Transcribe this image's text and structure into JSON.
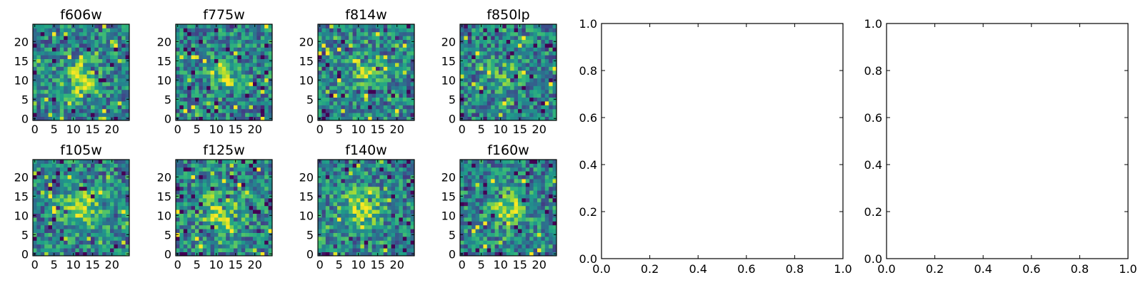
{
  "chart_data": [
    {
      "type": "heatmap",
      "title": "f606w",
      "x_ticks": [
        "0",
        "5",
        "10",
        "15",
        "20"
      ],
      "y_ticks": [
        "0",
        "5",
        "10",
        "15",
        "20"
      ],
      "xlim": [
        -0.5,
        24.5
      ],
      "ylim": [
        -0.5,
        24.5
      ],
      "grid_size": [
        25,
        25
      ],
      "colormap": "viridis",
      "seed": 11,
      "blob": {
        "x": 12,
        "y": 10,
        "amplitude": 0.45,
        "spread": 3.2
      }
    },
    {
      "type": "heatmap",
      "title": "f775w",
      "x_ticks": [
        "0",
        "5",
        "10",
        "15",
        "20"
      ],
      "y_ticks": [
        "0",
        "5",
        "10",
        "15",
        "20"
      ],
      "xlim": [
        -0.5,
        24.5
      ],
      "ylim": [
        -0.5,
        24.5
      ],
      "grid_size": [
        25,
        25
      ],
      "colormap": "viridis",
      "seed": 23,
      "blob": {
        "x": 12,
        "y": 12,
        "amplitude": 0.3,
        "spread": 2.8
      }
    },
    {
      "type": "heatmap",
      "title": "f814w",
      "x_ticks": [
        "0",
        "5",
        "10",
        "15",
        "20"
      ],
      "y_ticks": [
        "0",
        "5",
        "10",
        "15",
        "20"
      ],
      "xlim": [
        -0.5,
        24.5
      ],
      "ylim": [
        -0.5,
        24.5
      ],
      "grid_size": [
        25,
        25
      ],
      "colormap": "viridis",
      "seed": 37,
      "blob": {
        "x": 12,
        "y": 12,
        "amplitude": 0.3,
        "spread": 2.8
      }
    },
    {
      "type": "heatmap",
      "title": "f850lp",
      "x_ticks": [
        "0",
        "5",
        "10",
        "15",
        "20"
      ],
      "y_ticks": [
        "0",
        "5",
        "10",
        "15",
        "20"
      ],
      "xlim": [
        -0.5,
        24.5
      ],
      "ylim": [
        -0.5,
        24.5
      ],
      "grid_size": [
        25,
        25
      ],
      "colormap": "viridis",
      "seed": 41,
      "blob": {
        "x": 11,
        "y": 12,
        "amplitude": 0.25,
        "spread": 2.8
      }
    },
    {
      "type": "heatmap",
      "title": "f105w",
      "x_ticks": [
        "0",
        "5",
        "10",
        "15",
        "20"
      ],
      "y_ticks": [
        "0",
        "5",
        "10",
        "15",
        "20"
      ],
      "xlim": [
        -0.5,
        24.5
      ],
      "ylim": [
        -0.5,
        24.5
      ],
      "grid_size": [
        25,
        25
      ],
      "colormap": "viridis",
      "seed": 53,
      "blob": {
        "x": 12,
        "y": 12,
        "amplitude": 0.4,
        "spread": 3.5
      }
    },
    {
      "type": "heatmap",
      "title": "f125w",
      "x_ticks": [
        "0",
        "5",
        "10",
        "15",
        "20"
      ],
      "y_ticks": [
        "0",
        "5",
        "10",
        "15",
        "20"
      ],
      "xlim": [
        -0.5,
        24.5
      ],
      "ylim": [
        -0.5,
        24.5
      ],
      "grid_size": [
        25,
        25
      ],
      "colormap": "viridis",
      "seed": 67,
      "blob": {
        "x": 11,
        "y": 11,
        "amplitude": 0.4,
        "spread": 4.0
      }
    },
    {
      "type": "heatmap",
      "title": "f140w",
      "x_ticks": [
        "0",
        "5",
        "10",
        "15",
        "20"
      ],
      "y_ticks": [
        "0",
        "5",
        "10",
        "15",
        "20"
      ],
      "xlim": [
        -0.5,
        24.5
      ],
      "ylim": [
        -0.5,
        24.5
      ],
      "grid_size": [
        25,
        25
      ],
      "colormap": "viridis",
      "seed": 79,
      "blob": {
        "x": 11,
        "y": 12,
        "amplitude": 0.4,
        "spread": 3.6
      }
    },
    {
      "type": "heatmap",
      "title": "f160w",
      "x_ticks": [
        "0",
        "5",
        "10",
        "15",
        "20"
      ],
      "y_ticks": [
        "0",
        "5",
        "10",
        "15",
        "20"
      ],
      "xlim": [
        -0.5,
        24.5
      ],
      "ylim": [
        -0.5,
        24.5
      ],
      "grid_size": [
        25,
        25
      ],
      "colormap": "viridis",
      "seed": 97,
      "blob": {
        "x": 12,
        "y": 12,
        "amplitude": 0.4,
        "spread": 3.0
      }
    },
    {
      "type": "scatter",
      "title": "",
      "xlabel": "",
      "ylabel": "",
      "xlim": [
        0.0,
        1.0
      ],
      "ylim": [
        0.0,
        1.0
      ],
      "x_ticks": [
        "0.0",
        "0.2",
        "0.4",
        "0.6",
        "0.8",
        "1.0"
      ],
      "y_ticks": [
        "0.0",
        "0.2",
        "0.4",
        "0.6",
        "0.8",
        "1.0"
      ],
      "series": []
    },
    {
      "type": "scatter",
      "title": "",
      "xlabel": "",
      "ylabel": "",
      "xlim": [
        0.0,
        1.0
      ],
      "ylim": [
        0.0,
        1.0
      ],
      "x_ticks": [
        "0.0",
        "0.2",
        "0.4",
        "0.6",
        "0.8",
        "1.0"
      ],
      "y_ticks": [
        "0.0",
        "0.2",
        "0.4",
        "0.6",
        "0.8",
        "1.0"
      ],
      "series": []
    }
  ]
}
